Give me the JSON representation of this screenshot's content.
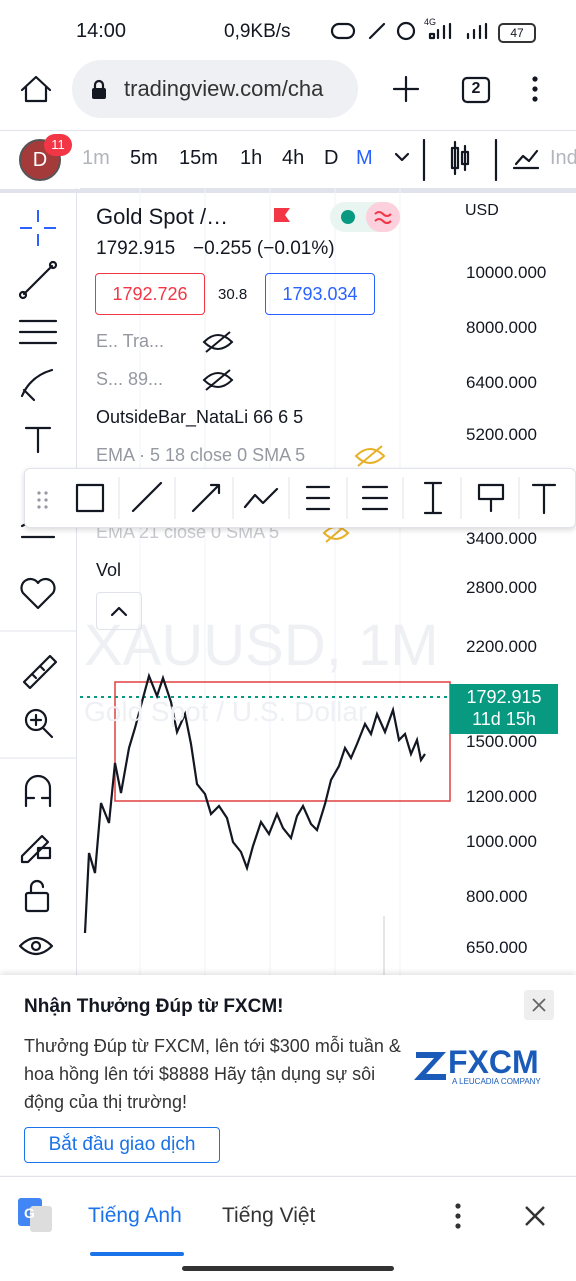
{
  "status_bar": {
    "time": "14:00",
    "speed": "0,9KB/s",
    "network": "4G",
    "battery": "47"
  },
  "browser": {
    "url": "tradingview.com/cha",
    "tabs": "2"
  },
  "toolbar": {
    "avatar": "D",
    "badge": "11",
    "timeframes": [
      "1m",
      "5m",
      "15m",
      "1h",
      "4h",
      "D",
      "M"
    ],
    "indicators": "Ind"
  },
  "chart": {
    "symbol": "Gold Spot /…",
    "price": "1792.915",
    "change": "−0.255 (−0.01%)",
    "bid": "1792.726",
    "spread": "30.8",
    "ask": "1793.034",
    "currency": "USD",
    "indicators": [
      "E.. Tra...",
      "S... 89...",
      "OutsideBar_NataLi 66 6 5",
      "EMA · 5 18 close 0 SMA 5",
      "EMA 21 close 0 SMA 5",
      "Vol"
    ],
    "axis_labels": [
      "10000.000",
      "8000.000",
      "6400.000",
      "5200.000",
      "3400.000",
      "2800.000",
      "2200.000",
      "1500.000",
      "1200.000",
      "1000.000",
      "800.000",
      "650.000"
    ],
    "price_tag": "1792.915",
    "countdown": "11d 15h",
    "watermark": "XAUUSD, 1M",
    "watermark_sub": "Gold Spot / U.S. Dollar"
  },
  "ad": {
    "title": "Nhận Thưởng Đúp từ FXCM!",
    "body": "Thưởng Đúp từ FXCM, lên tới $300 mỗi tuần & hoa hồng lên tới $8888 Hãy tận dụng sự sôi động của thị trường!",
    "button": "Bắt đầu giao dịch",
    "logo": "FXCM",
    "logo_sub": "A LEUCADIA COMPANY"
  },
  "translate": {
    "source": "Tiếng Anh",
    "target": "Tiếng Việt"
  }
}
